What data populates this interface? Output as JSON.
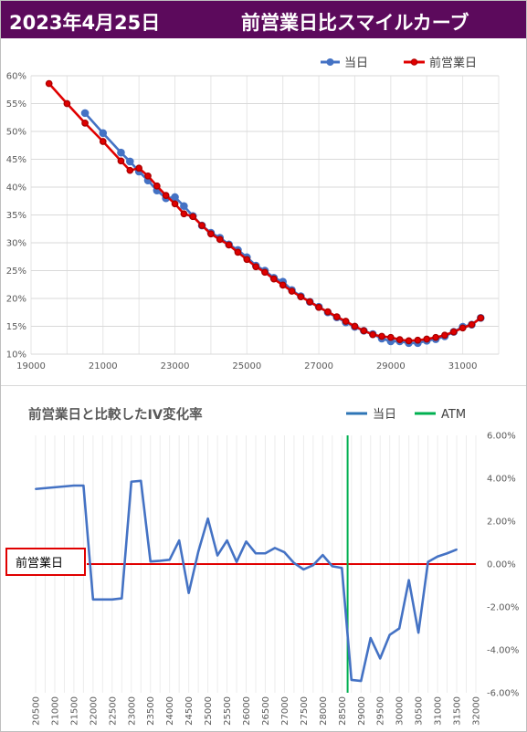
{
  "header": {
    "date": "2023年4月25日",
    "title": "前営業日比スマイルカーブ"
  },
  "colors": {
    "header_bg": "#5c0a5c",
    "current": "#4472c4",
    "previous": "#e00000",
    "atm": "#00b050",
    "zero_line": "#e00000"
  },
  "chart_data": [
    {
      "type": "line",
      "title": "",
      "xlim": [
        19000,
        32000
      ],
      "ylim": [
        0.1,
        0.6
      ],
      "x_ticks": [
        "19000",
        "21000",
        "23000",
        "25000",
        "27000",
        "29000",
        "31000"
      ],
      "y_ticks": [
        "10%",
        "15%",
        "20%",
        "25%",
        "30%",
        "35%",
        "40%",
        "45%",
        "50%",
        "55%",
        "60%"
      ],
      "grid": true,
      "legend": "top-right",
      "series": [
        {
          "name": "当日",
          "color": "#4472c4",
          "x": [
            20500,
            21000,
            21500,
            21750,
            22000,
            22250,
            22500,
            22750,
            23000,
            23250,
            23500,
            23750,
            24000,
            24250,
            24500,
            24750,
            25000,
            25250,
            25500,
            25750,
            26000,
            26250,
            26500,
            26750,
            27000,
            27250,
            27500,
            27750,
            28000,
            28250,
            28500,
            28750,
            29000,
            29250,
            29500,
            29750,
            30000,
            30250,
            30500,
            30750,
            31000,
            31250,
            31500
          ],
          "y": [
            0.533,
            0.497,
            0.462,
            0.446,
            0.428,
            0.412,
            0.394,
            0.38,
            0.382,
            0.366,
            0.348,
            0.331,
            0.318,
            0.309,
            0.297,
            0.287,
            0.274,
            0.259,
            0.25,
            0.237,
            0.23,
            0.215,
            0.204,
            0.194,
            0.185,
            0.175,
            0.166,
            0.157,
            0.149,
            0.142,
            0.136,
            0.128,
            0.123,
            0.123,
            0.12,
            0.12,
            0.124,
            0.127,
            0.132,
            0.14,
            0.149,
            0.153,
            0.165
          ]
        },
        {
          "name": "前営業日",
          "color": "#e00000",
          "x": [
            19500,
            20000,
            20500,
            21000,
            21500,
            21750,
            22000,
            22250,
            22500,
            22750,
            23000,
            23250,
            23500,
            23750,
            24000,
            24250,
            24500,
            24750,
            25000,
            25250,
            25500,
            25750,
            26000,
            26250,
            26500,
            26750,
            27000,
            27250,
            27500,
            27750,
            28000,
            28250,
            28500,
            28750,
            29000,
            29250,
            29500,
            29750,
            30000,
            30250,
            30500,
            30750,
            31000,
            31250,
            31500
          ],
          "y": [
            0.586,
            0.55,
            0.515,
            0.482,
            0.447,
            0.43,
            0.434,
            0.42,
            0.402,
            0.385,
            0.37,
            0.352,
            0.347,
            0.331,
            0.316,
            0.306,
            0.296,
            0.283,
            0.27,
            0.257,
            0.247,
            0.235,
            0.224,
            0.213,
            0.203,
            0.194,
            0.184,
            0.176,
            0.167,
            0.159,
            0.15,
            0.142,
            0.135,
            0.132,
            0.13,
            0.126,
            0.124,
            0.125,
            0.127,
            0.13,
            0.134,
            0.14,
            0.147,
            0.153,
            0.165
          ]
        }
      ]
    },
    {
      "type": "line",
      "title": "前営業日と比較したIV変化率",
      "categories": [
        "20500",
        "21000",
        "21500",
        "22000",
        "22500",
        "23000",
        "23500",
        "24000",
        "24500",
        "25000",
        "25500",
        "26000",
        "26500",
        "27000",
        "27500",
        "28000",
        "28500",
        "29000",
        "29500",
        "30000",
        "30500",
        "31000",
        "31500",
        "32000"
      ],
      "ylim": [
        -0.06,
        0.06
      ],
      "y_ticks": [
        "6.00%",
        "4.00%",
        "2.00%",
        "0.00%",
        "-2.00%",
        "-4.00%",
        "-6.00%"
      ],
      "legend": "top-right",
      "atm": {
        "name": "ATM",
        "strike": 28650
      },
      "zero_line_label": "前営業日",
      "series": [
        {
          "name": "当日",
          "color": "#4472c4",
          "x": [
            20500,
            21000,
            21500,
            21750,
            22000,
            22250,
            22500,
            22750,
            23000,
            23250,
            23500,
            23750,
            24000,
            24250,
            24500,
            24750,
            25000,
            25250,
            25500,
            25750,
            26000,
            26250,
            26500,
            26750,
            27000,
            27250,
            27500,
            27750,
            28000,
            28250,
            28500,
            28750,
            29000,
            29250,
            29500,
            29750,
            30000,
            30250,
            30500,
            30750,
            31000,
            31250,
            31500
          ],
          "y": [
            0.035,
            0.0358,
            0.0366,
            0.0366,
            -0.0165,
            -0.0165,
            -0.0165,
            -0.016,
            0.0384,
            0.0388,
            0.0012,
            0.0015,
            0.002,
            0.011,
            -0.0135,
            0.0058,
            0.0212,
            0.004,
            0.011,
            0.001,
            0.0105,
            0.005,
            0.005,
            0.0075,
            0.0055,
            0.0005,
            -0.0025,
            -0.0005,
            0.0042,
            -0.001,
            -0.0018,
            -0.054,
            -0.0545,
            -0.0345,
            -0.044,
            -0.033,
            -0.03,
            -0.0075,
            -0.032,
            0.001,
            0.0035,
            0.005,
            0.0068
          ]
        }
      ]
    }
  ]
}
